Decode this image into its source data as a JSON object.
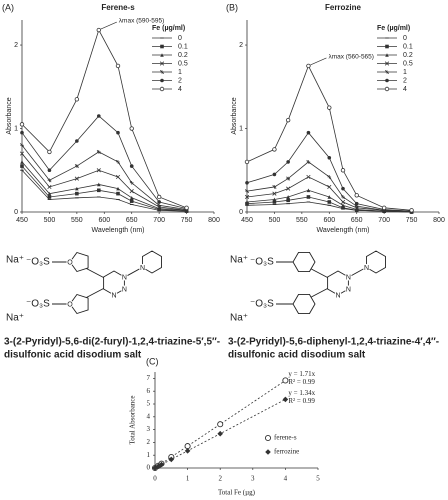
{
  "chart_data": [
    {
      "type": "line",
      "panel": "(A)",
      "title": "Ferene-s",
      "x_label": "Wavelength (nm)",
      "y_label": "Absorbance",
      "legend_title": "Fe (µg/ml)",
      "annotation": "λmax (590-595)",
      "x": [
        450,
        500,
        550,
        590,
        625,
        650,
        700,
        750
      ],
      "xlim": [
        450,
        800
      ],
      "xticks": [
        450,
        500,
        550,
        600,
        650,
        700,
        750,
        800
      ],
      "ylim": [
        0,
        2.3
      ],
      "yticks": [
        0,
        1,
        2
      ],
      "series": [
        {
          "name": "0",
          "color": "#333333",
          "marker": "dash",
          "values": [
            0.5,
            0.15,
            0.17,
            0.18,
            0.15,
            0.09,
            0.02,
            0.01
          ]
        },
        {
          "name": "0.1",
          "color": "#333333",
          "marker": "square",
          "values": [
            0.55,
            0.18,
            0.22,
            0.26,
            0.22,
            0.13,
            0.03,
            0.01
          ]
        },
        {
          "name": "0.2",
          "color": "#333333",
          "marker": "triangle",
          "values": [
            0.6,
            0.22,
            0.28,
            0.33,
            0.28,
            0.17,
            0.04,
            0.02
          ]
        },
        {
          "name": "0.5",
          "color": "#333333",
          "marker": "cross",
          "values": [
            0.7,
            0.3,
            0.4,
            0.5,
            0.42,
            0.25,
            0.06,
            0.02
          ]
        },
        {
          "name": "1",
          "color": "#333333",
          "marker": "star",
          "values": [
            0.8,
            0.38,
            0.55,
            0.72,
            0.6,
            0.35,
            0.08,
            0.03
          ]
        },
        {
          "name": "2",
          "color": "#333333",
          "marker": "dot",
          "values": [
            0.95,
            0.5,
            0.85,
            1.15,
            0.95,
            0.55,
            0.12,
            0.04
          ]
        },
        {
          "name": "4",
          "color": "#333333",
          "marker": "circle",
          "values": [
            1.05,
            0.72,
            1.35,
            2.18,
            1.75,
            1.0,
            0.18,
            0.05
          ]
        }
      ]
    },
    {
      "type": "line",
      "panel": "(B)",
      "title": "Ferrozine",
      "x_label": "Wavelength (nm)",
      "y_label": "Absorbance",
      "legend_title": "Fe (µg/ml)",
      "annotation": "λmax (560-565)",
      "x": [
        450,
        500,
        525,
        562,
        600,
        625,
        650,
        700,
        750
      ],
      "xlim": [
        450,
        800
      ],
      "xticks": [
        450,
        500,
        550,
        600,
        650,
        700,
        750,
        800
      ],
      "ylim": [
        0,
        2.3
      ],
      "yticks": [
        0,
        1,
        2
      ],
      "series": [
        {
          "name": "0",
          "color": "#333333",
          "marker": "dash",
          "values": [
            0.08,
            0.09,
            0.1,
            0.12,
            0.08,
            0.04,
            0.02,
            0.01,
            0
          ]
        },
        {
          "name": "0.1",
          "color": "#333333",
          "marker": "square",
          "values": [
            0.1,
            0.12,
            0.14,
            0.18,
            0.12,
            0.05,
            0.02,
            0.01,
            0
          ]
        },
        {
          "name": "0.2",
          "color": "#333333",
          "marker": "triangle",
          "values": [
            0.12,
            0.15,
            0.18,
            0.26,
            0.18,
            0.08,
            0.03,
            0.01,
            0
          ]
        },
        {
          "name": "0.5",
          "color": "#333333",
          "marker": "cross",
          "values": [
            0.18,
            0.22,
            0.28,
            0.42,
            0.3,
            0.12,
            0.05,
            0.02,
            0.01
          ]
        },
        {
          "name": "1",
          "color": "#333333",
          "marker": "star",
          "values": [
            0.25,
            0.3,
            0.4,
            0.6,
            0.42,
            0.18,
            0.07,
            0.02,
            0.01
          ]
        },
        {
          "name": "2",
          "color": "#333333",
          "marker": "dot",
          "values": [
            0.35,
            0.45,
            0.6,
            0.95,
            0.65,
            0.28,
            0.1,
            0.03,
            0.01
          ]
        },
        {
          "name": "4",
          "color": "#333333",
          "marker": "circle",
          "values": [
            0.6,
            0.75,
            1.1,
            1.75,
            1.25,
            0.5,
            0.2,
            0.05,
            0.02
          ]
        }
      ]
    },
    {
      "type": "scatter",
      "panel": "(C)",
      "x_label": "Total Fe (µg)",
      "y_label": "Total Absorbance",
      "annotations": [
        "y = 1.71x",
        "R² = 0.99",
        "y = 1.34x",
        "R² = 0.99"
      ],
      "x": [
        0,
        0.1,
        0.2,
        0.5,
        1,
        2,
        4
      ],
      "xlim": [
        0,
        5
      ],
      "xticks": [
        0,
        1,
        2,
        3,
        4,
        5
      ],
      "ylim": [
        0,
        7.5
      ],
      "yticks": [
        0,
        1,
        2,
        3,
        4,
        5,
        6,
        7
      ],
      "series": [
        {
          "name": "ferene-s",
          "color": "#333333",
          "marker": "circle-open",
          "values": [
            0,
            0.17,
            0.34,
            0.86,
            1.71,
            3.42,
            6.84
          ]
        },
        {
          "name": "ferrozine",
          "color": "#333333",
          "marker": "diamond",
          "values": [
            0,
            0.13,
            0.27,
            0.67,
            1.34,
            2.68,
            5.36
          ]
        }
      ]
    }
  ],
  "structures": [
    {
      "counterions": [
        "Na⁺",
        "Na⁺"
      ],
      "sulfonates": [
        "⁻O₃S",
        "⁻O₃S"
      ],
      "ring_atoms": [
        "O",
        "O",
        "N",
        "N",
        "N",
        "N"
      ],
      "name": [
        "3-(2-Pyridyl)-5,6-di(2-furyl)-1,2,4-triazine-5′,5″-",
        "disulfonic acid disodium salt"
      ]
    },
    {
      "counterions": [
        "Na⁺",
        "Na⁺"
      ],
      "sulfonates": [
        "⁻O₃S",
        "⁻O₃S"
      ],
      "ring_atoms": [
        "N",
        "N",
        "N",
        "N"
      ],
      "name": [
        "3-(2-Pyridyl)-5,6-diphenyl-1,2,4-triazine-4′,4″-",
        "disulfonic acid disodium salt"
      ]
    }
  ]
}
